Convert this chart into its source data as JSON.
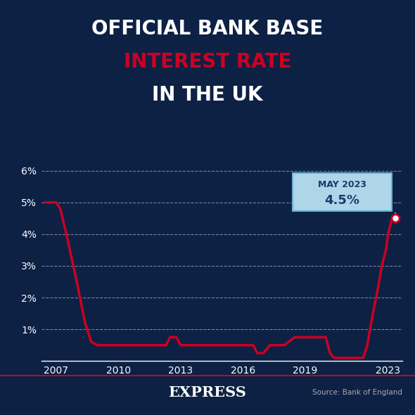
{
  "title_line1": "OFFICIAL BANK BASE",
  "title_line2": "INTEREST RATE",
  "title_line3": "IN THE UK",
  "title_line1_color": "#ffffff",
  "title_line2_color": "#cc0022",
  "title_line3_color": "#ffffff",
  "annotation_label": "MAY 2023",
  "annotation_value": "4.5%",
  "annotation_box_color": "#aed6e8",
  "annotation_text_color": "#1a3a6b",
  "annotation_border_color": "#6ab0d0",
  "source_text": "Source: Bank of England",
  "footer_text": "EXPRESS",
  "footer_line_color": "#cc0022",
  "footer_text_color": "#ffffff",
  "background_color": "#0d2145",
  "line_color": "#cc0022",
  "grid_color": "#ffffff",
  "ylabel_color": "#ffffff",
  "xlabel_color": "#ffffff",
  "ytick_labels": [
    "1%",
    "2%",
    "3%",
    "4%",
    "5%",
    "6%"
  ],
  "ytick_values": [
    1,
    2,
    3,
    4,
    5,
    6
  ],
  "xtick_labels": [
    "2007",
    "2010",
    "2013",
    "2016",
    "2019",
    "2023"
  ],
  "xtick_values": [
    2007,
    2010,
    2013,
    2016,
    2019,
    2023
  ],
  "xlim": [
    2006.3,
    2023.7
  ],
  "ylim": [
    0,
    6.8
  ],
  "data_x": [
    2006.5,
    2007.0,
    2007.2,
    2007.5,
    2008.0,
    2008.4,
    2008.7,
    2009.0,
    2009.2,
    2009.3,
    2012.0,
    2012.3,
    2012.5,
    2012.8,
    2013.0,
    2016.5,
    2016.7,
    2017.0,
    2017.3,
    2017.5,
    2017.8,
    2018.0,
    2018.5,
    2018.7,
    2019.0,
    2019.5,
    2020.0,
    2020.2,
    2020.4,
    2020.5,
    2021.8,
    2022.0,
    2022.2,
    2022.5,
    2022.7,
    2022.9,
    2023.0,
    2023.2,
    2023.35
  ],
  "data_y": [
    5.0,
    5.0,
    4.8,
    4.0,
    2.5,
    1.2,
    0.6,
    0.5,
    0.5,
    0.5,
    0.5,
    0.5,
    0.75,
    0.75,
    0.5,
    0.5,
    0.25,
    0.25,
    0.5,
    0.5,
    0.5,
    0.5,
    0.75,
    0.75,
    0.75,
    0.75,
    0.75,
    0.25,
    0.1,
    0.1,
    0.1,
    0.5,
    1.25,
    2.25,
    3.0,
    3.5,
    4.0,
    4.5,
    4.5
  ],
  "endpoint_x": 2023.35,
  "endpoint_y": 4.5,
  "connector_x": 2023.35,
  "connector_y_top": 5.15,
  "line_width": 2.5
}
